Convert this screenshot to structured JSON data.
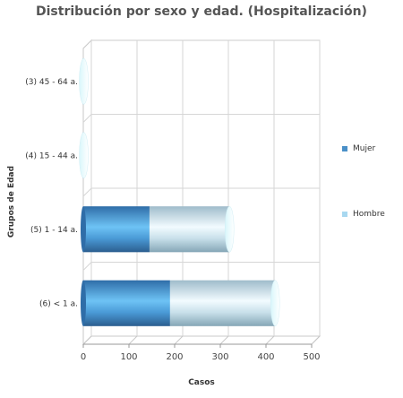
{
  "chart_data": {
    "type": "bar",
    "orientation": "horizontal",
    "stacked": true,
    "style": "3d-cylinder",
    "title": "Distribución por sexo y edad. (Hospitalización)",
    "xlabel": "Casos",
    "ylabel": "Grupos de Edad",
    "xlim": [
      0,
      500
    ],
    "x_ticks": [
      "0",
      "100",
      "200",
      "300",
      "400",
      "500"
    ],
    "grid": true,
    "legend_position": "right",
    "categories": [
      "(3) 45 - 64 a.",
      "(4) 15 - 44 a.",
      "(5) 1 - 14 a.",
      "(6) < 1 a."
    ],
    "series": [
      {
        "name": "Mujer",
        "color": "#4a90c8",
        "values": [
          0,
          1,
          145,
          190
        ]
      },
      {
        "name": "Hombre",
        "color": "#a8d8f0",
        "values": [
          1,
          0,
          175,
          230
        ]
      }
    ]
  }
}
